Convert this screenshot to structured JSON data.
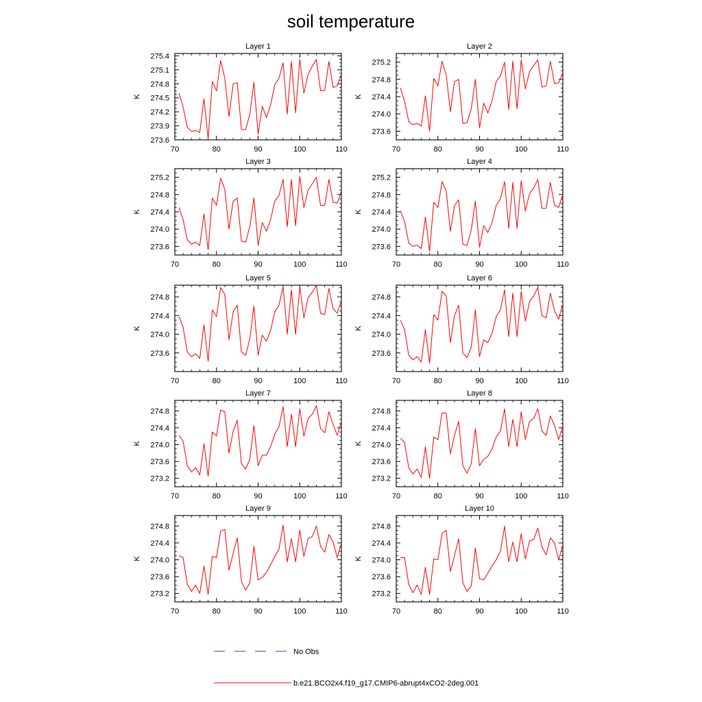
{
  "title": "soil temperature",
  "legend": {
    "obs_label": "No Obs",
    "obs_color": "#2f3db5",
    "model_label": "b.e21.BCO2x4.f19_g17.CMIP6-abrupt4xCO2-2deg.001",
    "model_color": "#ff0000"
  },
  "chart_data": [
    {
      "type": "line",
      "title": "Layer 1",
      "ylabel": "K",
      "xlim": [
        70,
        110
      ],
      "ylim": [
        273.6,
        275.45
      ],
      "xticks": [
        70,
        80,
        90,
        100,
        110
      ],
      "yticks": [
        273.6,
        273.9,
        274.2,
        274.5,
        274.8,
        275.1,
        275.4
      ],
      "ytick_decimals": 1,
      "x": [
        71,
        72,
        73,
        74,
        75,
        76,
        77,
        78,
        79,
        80,
        81,
        82,
        83,
        84,
        85,
        86,
        87,
        88,
        89,
        90,
        91,
        92,
        93,
        94,
        95,
        96,
        97,
        98,
        99,
        100,
        101,
        102,
        103,
        104,
        105,
        106,
        107,
        108,
        109,
        110
      ],
      "series": [
        {
          "name": "b.e21.BCO2x4.f19_g17.CMIP6-abrupt4xCO2-2deg.001",
          "values": [
            274.6,
            274.3,
            273.87,
            273.78,
            273.8,
            273.76,
            274.48,
            273.63,
            274.85,
            274.65,
            275.3,
            274.92,
            274.1,
            274.8,
            274.82,
            273.82,
            273.82,
            274.15,
            274.83,
            273.72,
            274.32,
            274.08,
            274.35,
            274.78,
            274.92,
            275.25,
            274.15,
            275.28,
            274.18,
            275.32,
            274.6,
            275.0,
            275.18,
            275.32,
            274.65,
            274.66,
            275.28,
            274.72,
            274.76,
            275.0
          ]
        }
      ]
    },
    {
      "type": "line",
      "title": "Layer 2",
      "ylabel": "K",
      "xlim": [
        70,
        110
      ],
      "ylim": [
        273.4,
        275.4
      ],
      "xticks": [
        70,
        80,
        90,
        100,
        110
      ],
      "yticks": [
        273.6,
        274.0,
        274.4,
        274.8,
        275.2
      ],
      "ytick_decimals": 1,
      "x": [
        71,
        72,
        73,
        74,
        75,
        76,
        77,
        78,
        79,
        80,
        81,
        82,
        83,
        84,
        85,
        86,
        87,
        88,
        89,
        90,
        91,
        92,
        93,
        94,
        95,
        96,
        97,
        98,
        99,
        100,
        101,
        102,
        103,
        104,
        105,
        106,
        107,
        108,
        109,
        110
      ],
      "series": [
        {
          "name": "b.e21.BCO2x4.f19_g17.CMIP6-abrupt4xCO2-2deg.001",
          "values": [
            274.6,
            274.3,
            273.82,
            273.75,
            273.78,
            273.72,
            274.42,
            273.6,
            274.82,
            274.65,
            275.22,
            274.9,
            274.05,
            274.75,
            274.8,
            273.78,
            273.8,
            274.12,
            274.8,
            273.68,
            274.25,
            274.02,
            274.3,
            274.75,
            274.88,
            275.2,
            274.1,
            275.22,
            274.12,
            275.25,
            274.58,
            274.98,
            275.12,
            275.25,
            274.62,
            274.65,
            275.22,
            274.7,
            274.72,
            274.95
          ]
        }
      ]
    },
    {
      "type": "line",
      "title": "Layer 3",
      "ylabel": "K",
      "xlim": [
        70,
        110
      ],
      "ylim": [
        273.4,
        275.4
      ],
      "xticks": [
        70,
        80,
        90,
        100,
        110
      ],
      "yticks": [
        273.6,
        274.0,
        274.4,
        274.8,
        275.2
      ],
      "ytick_decimals": 1,
      "x": [
        71,
        72,
        73,
        74,
        75,
        76,
        77,
        78,
        79,
        80,
        81,
        82,
        83,
        84,
        85,
        86,
        87,
        88,
        89,
        90,
        91,
        92,
        93,
        94,
        95,
        96,
        97,
        98,
        99,
        100,
        101,
        102,
        103,
        104,
        105,
        106,
        107,
        108,
        109,
        110
      ],
      "series": [
        {
          "name": "b.e21.BCO2x4.f19_g17.CMIP6-abrupt4xCO2-2deg.001",
          "values": [
            274.5,
            274.22,
            273.75,
            273.65,
            273.7,
            273.62,
            274.35,
            273.52,
            274.72,
            274.55,
            275.18,
            274.92,
            274.0,
            274.65,
            274.72,
            273.72,
            273.7,
            274.05,
            274.72,
            273.62,
            274.15,
            273.95,
            274.22,
            274.65,
            274.78,
            275.15,
            274.05,
            275.15,
            274.08,
            275.22,
            274.5,
            274.9,
            275.05,
            275.2,
            274.55,
            274.55,
            275.15,
            274.62,
            274.6,
            274.88
          ]
        }
      ]
    },
    {
      "type": "line",
      "title": "Layer 4",
      "ylabel": "K",
      "xlim": [
        70,
        110
      ],
      "ylim": [
        273.4,
        275.4
      ],
      "xticks": [
        70,
        80,
        90,
        100,
        110
      ],
      "yticks": [
        273.6,
        274.0,
        274.4,
        274.8,
        275.2
      ],
      "ytick_decimals": 1,
      "x": [
        71,
        72,
        73,
        74,
        75,
        76,
        77,
        78,
        79,
        80,
        81,
        82,
        83,
        84,
        85,
        86,
        87,
        88,
        89,
        90,
        91,
        92,
        93,
        94,
        95,
        96,
        97,
        98,
        99,
        100,
        101,
        102,
        103,
        104,
        105,
        106,
        107,
        108,
        109,
        110
      ],
      "series": [
        {
          "name": "b.e21.BCO2x4.f19_g17.CMIP6-abrupt4xCO2-2deg.001",
          "values": [
            274.42,
            274.18,
            273.68,
            273.6,
            273.63,
            273.55,
            274.28,
            273.48,
            274.62,
            274.5,
            275.1,
            274.88,
            273.95,
            274.55,
            274.68,
            273.65,
            273.62,
            273.98,
            274.65,
            273.58,
            274.08,
            273.92,
            274.15,
            274.55,
            274.7,
            275.1,
            274.02,
            275.08,
            274.02,
            275.12,
            274.42,
            274.82,
            274.95,
            275.15,
            274.48,
            274.48,
            275.08,
            274.55,
            274.5,
            274.8
          ]
        }
      ]
    },
    {
      "type": "line",
      "title": "Layer 5",
      "ylabel": "K",
      "xlim": [
        70,
        110
      ],
      "ylim": [
        273.2,
        275.05
      ],
      "xticks": [
        70,
        80,
        90,
        100,
        110
      ],
      "yticks": [
        273.6,
        274.0,
        274.4,
        274.8
      ],
      "ytick_decimals": 1,
      "x": [
        71,
        72,
        73,
        74,
        75,
        76,
        77,
        78,
        79,
        80,
        81,
        82,
        83,
        84,
        85,
        86,
        87,
        88,
        89,
        90,
        91,
        92,
        93,
        94,
        95,
        96,
        97,
        98,
        99,
        100,
        101,
        102,
        103,
        104,
        105,
        106,
        107,
        108,
        109,
        110
      ],
      "series": [
        {
          "name": "b.e21.BCO2x4.f19_g17.CMIP6-abrupt4xCO2-2deg.001",
          "values": [
            274.38,
            274.15,
            273.62,
            273.52,
            273.58,
            273.48,
            274.2,
            273.42,
            274.52,
            274.38,
            275.0,
            274.85,
            273.88,
            274.48,
            274.62,
            273.62,
            273.55,
            273.9,
            274.6,
            273.55,
            273.98,
            273.85,
            274.08,
            274.48,
            274.62,
            275.02,
            274.0,
            274.95,
            274.0,
            275.02,
            274.35,
            274.78,
            274.9,
            275.05,
            274.45,
            274.42,
            274.98,
            274.55,
            274.45,
            274.72
          ]
        }
      ]
    },
    {
      "type": "line",
      "title": "Layer 6",
      "ylabel": "K",
      "xlim": [
        70,
        110
      ],
      "ylim": [
        273.2,
        275.05
      ],
      "xticks": [
        70,
        80,
        90,
        100,
        110
      ],
      "yticks": [
        273.6,
        274.0,
        274.4,
        274.8
      ],
      "ytick_decimals": 1,
      "x": [
        71,
        72,
        73,
        74,
        75,
        76,
        77,
        78,
        79,
        80,
        81,
        82,
        83,
        84,
        85,
        86,
        87,
        88,
        89,
        90,
        91,
        92,
        93,
        94,
        95,
        96,
        97,
        98,
        99,
        100,
        101,
        102,
        103,
        104,
        105,
        106,
        107,
        108,
        109,
        110
      ],
      "series": [
        {
          "name": "b.e21.BCO2x4.f19_g17.CMIP6-abrupt4xCO2-2deg.001",
          "values": [
            274.3,
            274.1,
            273.55,
            273.45,
            273.52,
            273.4,
            274.1,
            273.38,
            274.42,
            274.3,
            274.92,
            274.82,
            273.82,
            274.4,
            274.62,
            273.6,
            273.5,
            273.72,
            274.52,
            273.52,
            273.88,
            273.82,
            274.02,
            274.38,
            274.52,
            274.95,
            273.95,
            274.88,
            273.95,
            274.92,
            274.28,
            274.7,
            274.82,
            275.0,
            274.4,
            274.35,
            274.88,
            274.5,
            274.32,
            274.65
          ]
        }
      ]
    },
    {
      "type": "line",
      "title": "Layer 7",
      "ylabel": "K",
      "xlim": [
        70,
        110
      ],
      "ylim": [
        273.0,
        275.05
      ],
      "xticks": [
        70,
        80,
        90,
        100,
        110
      ],
      "yticks": [
        273.2,
        273.6,
        274.0,
        274.4,
        274.8
      ],
      "ytick_decimals": 1,
      "x": [
        71,
        72,
        73,
        74,
        75,
        76,
        77,
        78,
        79,
        80,
        81,
        82,
        83,
        84,
        85,
        86,
        87,
        88,
        89,
        90,
        91,
        92,
        93,
        94,
        95,
        96,
        97,
        98,
        99,
        100,
        101,
        102,
        103,
        104,
        105,
        106,
        107,
        108,
        109,
        110
      ],
      "series": [
        {
          "name": "b.e21.BCO2x4.f19_g17.CMIP6-abrupt4xCO2-2deg.001",
          "values": [
            274.22,
            274.08,
            273.5,
            273.35,
            273.45,
            273.28,
            274.02,
            273.25,
            274.3,
            274.2,
            274.82,
            274.78,
            273.8,
            274.32,
            274.58,
            273.55,
            273.42,
            273.65,
            274.45,
            273.5,
            273.75,
            273.75,
            273.95,
            274.25,
            274.42,
            274.9,
            273.95,
            274.72,
            273.95,
            274.85,
            274.2,
            274.62,
            274.72,
            274.92,
            274.38,
            274.28,
            274.78,
            274.48,
            274.22,
            274.55
          ]
        }
      ]
    },
    {
      "type": "line",
      "title": "Layer 8",
      "ylabel": "K",
      "xlim": [
        70,
        110
      ],
      "ylim": [
        273.0,
        275.05
      ],
      "xticks": [
        70,
        80,
        90,
        100,
        110
      ],
      "yticks": [
        273.2,
        273.6,
        274.0,
        274.4,
        274.8
      ],
      "ytick_decimals": 1,
      "x": [
        71,
        72,
        73,
        74,
        75,
        76,
        77,
        78,
        79,
        80,
        81,
        82,
        83,
        84,
        85,
        86,
        87,
        88,
        89,
        90,
        91,
        92,
        93,
        94,
        95,
        96,
        97,
        98,
        99,
        100,
        101,
        102,
        103,
        104,
        105,
        106,
        107,
        108,
        109,
        110
      ],
      "series": [
        {
          "name": "b.e21.BCO2x4.f19_g17.CMIP6-abrupt4xCO2-2deg.001",
          "values": [
            274.15,
            274.05,
            273.45,
            273.3,
            273.42,
            273.22,
            273.95,
            273.2,
            274.18,
            274.12,
            274.75,
            274.75,
            273.78,
            274.22,
            274.55,
            273.5,
            273.32,
            273.55,
            274.38,
            273.5,
            273.65,
            273.72,
            273.9,
            274.18,
            274.32,
            274.85,
            273.95,
            274.6,
            273.95,
            274.78,
            274.12,
            274.55,
            274.62,
            274.85,
            274.32,
            274.22,
            274.68,
            274.45,
            274.12,
            274.45
          ]
        }
      ]
    },
    {
      "type": "line",
      "title": "Layer 9",
      "ylabel": "K",
      "xlim": [
        70,
        110
      ],
      "ylim": [
        273.0,
        275.05
      ],
      "xticks": [
        70,
        80,
        90,
        100,
        110
      ],
      "yticks": [
        273.2,
        273.6,
        274.0,
        274.4,
        274.8
      ],
      "ytick_decimals": 1,
      "x": [
        71,
        72,
        73,
        74,
        75,
        76,
        77,
        78,
        79,
        80,
        81,
        82,
        83,
        84,
        85,
        86,
        87,
        88,
        89,
        90,
        91,
        92,
        93,
        94,
        95,
        96,
        97,
        98,
        99,
        100,
        101,
        102,
        103,
        104,
        105,
        106,
        107,
        108,
        109,
        110
      ],
      "series": [
        {
          "name": "b.e21.BCO2x4.f19_g17.CMIP6-abrupt4xCO2-2deg.001",
          "values": [
            274.1,
            274.05,
            273.42,
            273.25,
            273.4,
            273.2,
            273.85,
            273.18,
            274.08,
            274.05,
            274.68,
            274.72,
            273.75,
            274.15,
            274.52,
            273.48,
            273.28,
            273.45,
            274.32,
            273.52,
            273.58,
            273.7,
            273.88,
            274.08,
            274.25,
            274.82,
            273.95,
            274.5,
            273.95,
            274.7,
            274.08,
            274.5,
            274.55,
            274.8,
            274.32,
            274.18,
            274.6,
            274.42,
            274.05,
            274.4
          ]
        }
      ]
    },
    {
      "type": "line",
      "title": "Layer 10",
      "ylabel": "K",
      "xlim": [
        70,
        110
      ],
      "ylim": [
        273.0,
        275.05
      ],
      "xticks": [
        70,
        80,
        90,
        100,
        110
      ],
      "yticks": [
        273.2,
        273.6,
        274.0,
        274.4,
        274.8
      ],
      "ytick_decimals": 1,
      "x": [
        71,
        72,
        73,
        74,
        75,
        76,
        77,
        78,
        79,
        80,
        81,
        82,
        83,
        84,
        85,
        86,
        87,
        88,
        89,
        90,
        91,
        92,
        93,
        94,
        95,
        96,
        97,
        98,
        99,
        100,
        101,
        102,
        103,
        104,
        105,
        106,
        107,
        108,
        109,
        110
      ],
      "series": [
        {
          "name": "b.e21.BCO2x4.f19_g17.CMIP6-abrupt4xCO2-2deg.001",
          "values": [
            274.05,
            274.05,
            273.42,
            273.22,
            273.4,
            273.18,
            273.82,
            273.18,
            274.02,
            274.0,
            274.62,
            274.7,
            273.72,
            274.1,
            274.5,
            273.45,
            273.25,
            273.38,
            274.28,
            273.55,
            273.52,
            273.68,
            273.85,
            274.0,
            274.2,
            274.8,
            273.95,
            274.42,
            273.95,
            274.62,
            274.02,
            274.45,
            274.48,
            274.75,
            274.3,
            274.12,
            274.52,
            274.4,
            274.0,
            274.35
          ]
        }
      ]
    }
  ]
}
